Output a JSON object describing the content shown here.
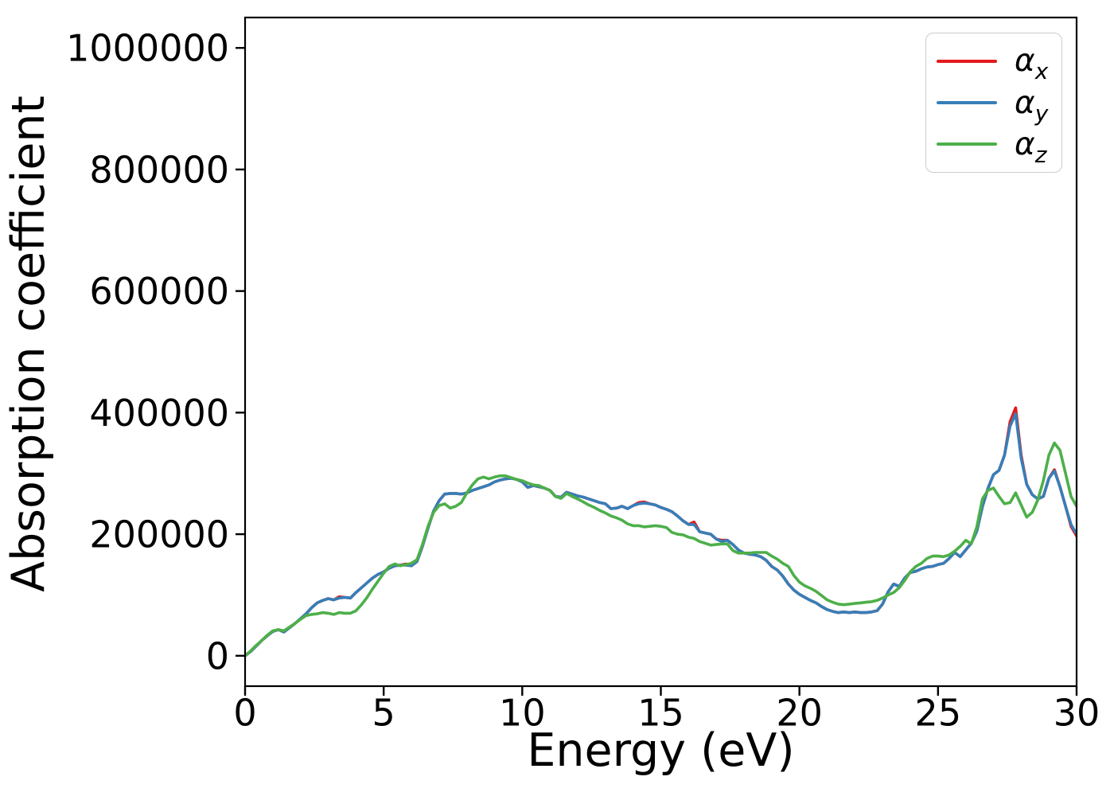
{
  "chart_data": {
    "type": "line",
    "title": "",
    "xlabel": "Energy (eV)",
    "ylabel": "Absorption coefficient",
    "xlim": [
      0,
      30
    ],
    "ylim": [
      -50000,
      1050000
    ],
    "xticks": [
      0,
      5,
      10,
      15,
      20,
      25,
      30
    ],
    "xtick_labels": [
      "0",
      "5",
      "10",
      "15",
      "20",
      "25",
      "30"
    ],
    "yticks": [
      0,
      200000,
      400000,
      600000,
      800000,
      1000000
    ],
    "ytick_labels": [
      "0",
      "200000",
      "400000",
      "600000",
      "800000",
      "1000000"
    ],
    "grid": false,
    "legend_position": "upper right",
    "x_start": 0,
    "x_step": 0.2,
    "series": [
      {
        "id": "alpha-x",
        "name": "αx",
        "symbol": "α",
        "sub": "x",
        "color": "#e41a1c",
        "values": [
          0,
          7000,
          16000,
          25000,
          33000,
          40000,
          43000,
          39000,
          46000,
          53000,
          61000,
          69000,
          79000,
          87000,
          91000,
          94000,
          92000,
          97000,
          96000,
          95000,
          104000,
          112000,
          120000,
          128000,
          134000,
          138000,
          144000,
          148000,
          149000,
          151000,
          148000,
          155000,
          180000,
          210000,
          238000,
          255000,
          266000,
          267000,
          267000,
          266000,
          268000,
          272000,
          275000,
          278000,
          281000,
          286000,
          289000,
          291000,
          292000,
          290000,
          286000,
          277000,
          280000,
          278000,
          276000,
          272000,
          262000,
          261000,
          269000,
          266000,
          263000,
          261000,
          258000,
          255000,
          252000,
          250000,
          242000,
          243000,
          246000,
          242000,
          247000,
          252000,
          253000,
          250000,
          248000,
          244000,
          241000,
          237000,
          230000,
          222000,
          216000,
          220000,
          204000,
          202000,
          200000,
          192000,
          190000,
          190000,
          183000,
          174000,
          169000,
          167000,
          166000,
          163000,
          157000,
          147000,
          141000,
          131000,
          118000,
          108000,
          101000,
          96000,
          91000,
          87000,
          81000,
          76000,
          73000,
          71000,
          72000,
          71000,
          72000,
          71000,
          71000,
          72000,
          74000,
          85000,
          105000,
          118000,
          114000,
          128000,
          137000,
          139000,
          143000,
          146000,
          147000,
          150000,
          152000,
          160000,
          170000,
          163000,
          174000,
          185000,
          205000,
          245000,
          275000,
          298000,
          305000,
          330000,
          385000,
          408000,
          330000,
          282000,
          265000,
          258000,
          262000,
          292000,
          306000,
          278000,
          246000,
          213000,
          197000
        ]
      },
      {
        "id": "alpha-y",
        "name": "αy",
        "symbol": "α",
        "sub": "y",
        "color": "#377eb8",
        "values": [
          0,
          7000,
          16000,
          25000,
          33000,
          40000,
          43000,
          39000,
          46000,
          53000,
          61000,
          69000,
          79000,
          87000,
          91000,
          94000,
          92000,
          95000,
          96000,
          95000,
          104000,
          112000,
          120000,
          128000,
          134000,
          138000,
          144000,
          148000,
          149000,
          149000,
          148000,
          155000,
          180000,
          210000,
          238000,
          255000,
          266000,
          267000,
          267000,
          266000,
          268000,
          272000,
          275000,
          278000,
          281000,
          286000,
          289000,
          291000,
          292000,
          290000,
          286000,
          277000,
          280000,
          278000,
          276000,
          272000,
          262000,
          261000,
          269000,
          266000,
          263000,
          261000,
          258000,
          255000,
          252000,
          250000,
          242000,
          243000,
          246000,
          242000,
          247000,
          250000,
          251000,
          250000,
          248000,
          244000,
          241000,
          237000,
          230000,
          222000,
          216000,
          216000,
          204000,
          202000,
          200000,
          192000,
          188000,
          190000,
          183000,
          174000,
          169000,
          167000,
          166000,
          163000,
          157000,
          147000,
          141000,
          131000,
          118000,
          108000,
          101000,
          96000,
          91000,
          87000,
          81000,
          76000,
          73000,
          71000,
          72000,
          71000,
          72000,
          71000,
          71000,
          72000,
          74000,
          85000,
          105000,
          118000,
          114000,
          128000,
          137000,
          139000,
          143000,
          146000,
          147000,
          150000,
          152000,
          160000,
          170000,
          163000,
          174000,
          185000,
          205000,
          245000,
          275000,
          298000,
          305000,
          330000,
          378000,
          398000,
          325000,
          282000,
          265000,
          258000,
          262000,
          292000,
          304000,
          278000,
          246000,
          216000,
          200000
        ]
      },
      {
        "id": "alpha-z",
        "name": "αz",
        "symbol": "α",
        "sub": "z",
        "color": "#4daf4a",
        "values": [
          0,
          8000,
          17000,
          25000,
          34000,
          41000,
          43000,
          41000,
          47000,
          53000,
          60000,
          66000,
          68000,
          69000,
          71000,
          70000,
          68000,
          71000,
          70000,
          70000,
          74000,
          84000,
          96000,
          110000,
          123000,
          136000,
          147000,
          151000,
          148000,
          150000,
          152000,
          158000,
          183000,
          213000,
          236000,
          247000,
          250000,
          243000,
          246000,
          252000,
          268000,
          281000,
          291000,
          294000,
          291000,
          294000,
          296000,
          296000,
          293000,
          290000,
          288000,
          284000,
          281000,
          280000,
          276000,
          272000,
          262000,
          259000,
          267000,
          262000,
          258000,
          253000,
          248000,
          244000,
          239000,
          235000,
          230000,
          227000,
          223000,
          217000,
          214000,
          214000,
          212000,
          213000,
          214000,
          213000,
          211000,
          203000,
          200000,
          199000,
          195000,
          193000,
          188000,
          185000,
          182000,
          183000,
          184000,
          184000,
          173000,
          169000,
          169000,
          169000,
          170000,
          170000,
          170000,
          164000,
          159000,
          152000,
          147000,
          132000,
          121000,
          115000,
          111000,
          106000,
          99000,
          92000,
          88000,
          85000,
          84000,
          85000,
          86000,
          87000,
          88000,
          89000,
          91000,
          95000,
          100000,
          104000,
          112000,
          124000,
          138000,
          147000,
          152000,
          160000,
          164000,
          164000,
          163000,
          166000,
          172000,
          180000,
          190000,
          184000,
          212000,
          258000,
          272000,
          276000,
          262000,
          250000,
          252000,
          268000,
          248000,
          228000,
          236000,
          256000,
          288000,
          330000,
          350000,
          338000,
          300000,
          262000,
          246000
        ]
      }
    ]
  }
}
